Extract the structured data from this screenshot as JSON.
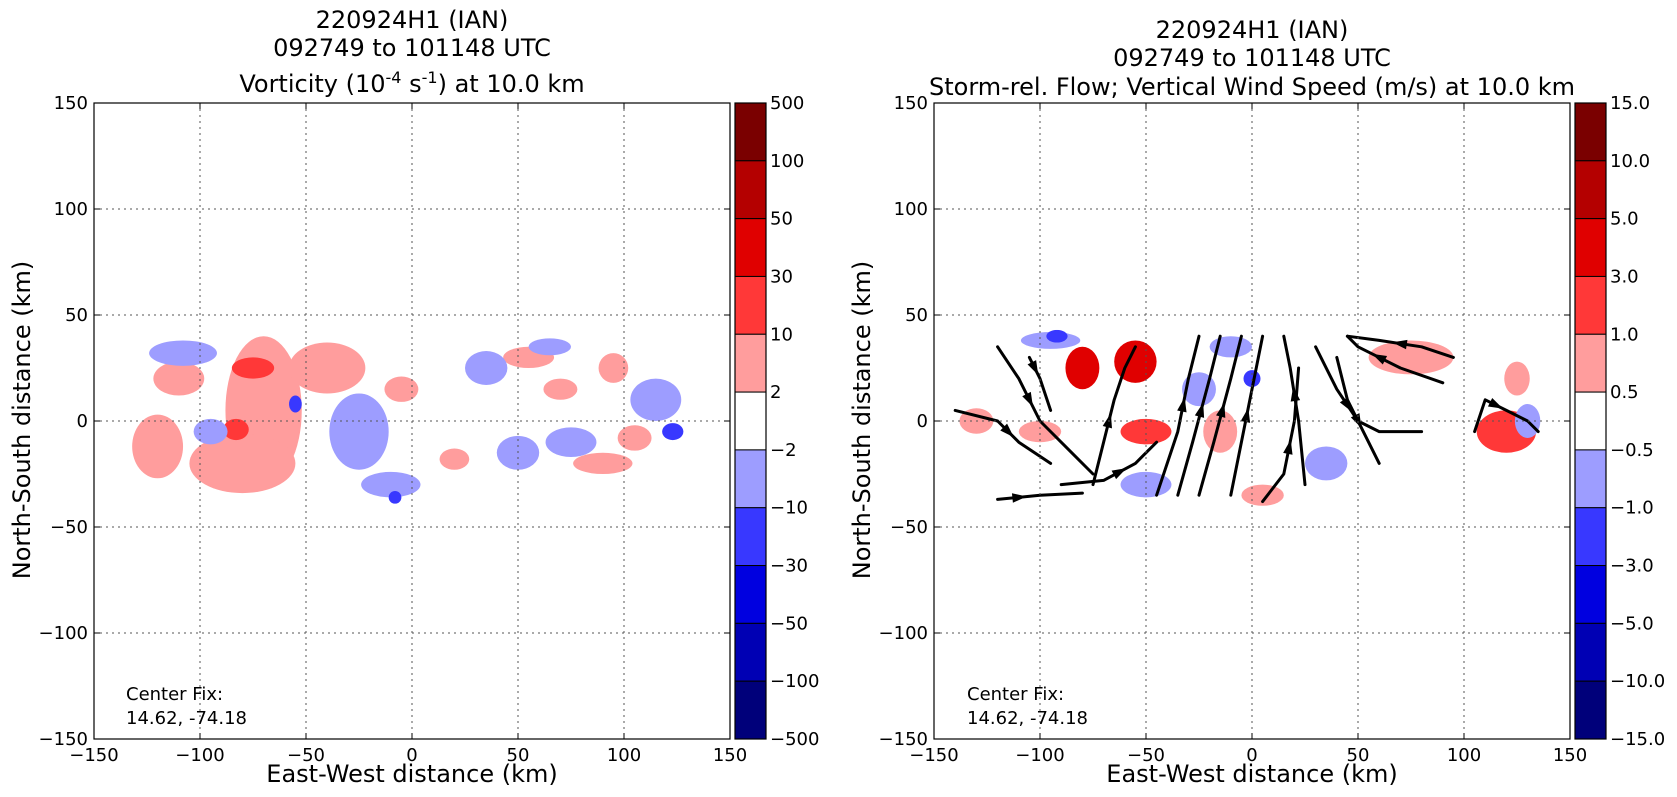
{
  "chart_data": [
    {
      "type": "heatmap",
      "title_lines": [
        "220924H1 (IAN)",
        "092749 to 101148 UTC"
      ],
      "subtitle_prefix": "Vorticity (10",
      "subtitle_sup1": "-4",
      "subtitle_mid": " s",
      "subtitle_sup2": "-1",
      "subtitle_suffix": ") at 10.0 km",
      "xlabel": "East-West distance (km)",
      "ylabel": "North-South distance (km)",
      "xlim": [
        -150,
        150
      ],
      "ylim": [
        -150,
        150
      ],
      "xticks": [
        -150,
        -100,
        -50,
        0,
        50,
        100,
        150
      ],
      "yticks": [
        -150,
        -100,
        -50,
        0,
        50,
        100,
        150
      ],
      "xtick_labels": [
        "−150",
        "−100",
        "−50",
        "0",
        "50",
        "100",
        "150"
      ],
      "ytick_labels": [
        "−150",
        "−100",
        "−50",
        "0",
        "50",
        "100",
        "150"
      ],
      "grid": true,
      "annotation": [
        "Center Fix:",
        "14.62, -74.18"
      ],
      "colorbar": {
        "labels": [
          "500",
          "100",
          "50",
          "30",
          "10",
          "2",
          "−2",
          "−10",
          "−30",
          "−50",
          "−100",
          "−500"
        ],
        "colors": [
          "#7a0000",
          "#b40000",
          "#e00000",
          "#ff3838",
          "#ff9d9d",
          "#ffffff",
          "#9d9dff",
          "#3838ff",
          "#0000e0",
          "#0000b4",
          "#00007a"
        ]
      },
      "data_extent": {
        "x": [
          -140,
          137
        ],
        "y": [
          -42,
          41
        ]
      },
      "features": [
        {
          "level": "pos-weak",
          "x": -70,
          "y": 5,
          "rx": 18,
          "ry": 35
        },
        {
          "level": "pos-weak",
          "x": -110,
          "y": 20,
          "rx": 12,
          "ry": 8
        },
        {
          "level": "pos-weak",
          "x": -120,
          "y": -12,
          "rx": 12,
          "ry": 15
        },
        {
          "level": "pos-weak",
          "x": -80,
          "y": -20,
          "rx": 25,
          "ry": 14
        },
        {
          "level": "pos-weak",
          "x": -40,
          "y": 25,
          "rx": 18,
          "ry": 12
        },
        {
          "level": "pos-mod",
          "x": -75,
          "y": 25,
          "rx": 10,
          "ry": 5
        },
        {
          "level": "pos-mod",
          "x": -83,
          "y": -4,
          "rx": 6,
          "ry": 5
        },
        {
          "level": "pos-weak",
          "x": -5,
          "y": 15,
          "rx": 8,
          "ry": 6
        },
        {
          "level": "pos-weak",
          "x": 55,
          "y": 30,
          "rx": 12,
          "ry": 5
        },
        {
          "level": "pos-weak",
          "x": 70,
          "y": 15,
          "rx": 8,
          "ry": 5
        },
        {
          "level": "pos-weak",
          "x": 20,
          "y": -18,
          "rx": 7,
          "ry": 5
        },
        {
          "level": "pos-weak",
          "x": 90,
          "y": -20,
          "rx": 14,
          "ry": 5
        },
        {
          "level": "pos-weak",
          "x": 105,
          "y": -8,
          "rx": 8,
          "ry": 6
        },
        {
          "level": "pos-weak",
          "x": 95,
          "y": 25,
          "rx": 7,
          "ry": 7
        },
        {
          "level": "neg-weak",
          "x": -25,
          "y": -5,
          "rx": 14,
          "ry": 18
        },
        {
          "level": "neg-weak",
          "x": -108,
          "y": 32,
          "rx": 16,
          "ry": 6
        },
        {
          "level": "neg-weak",
          "x": -95,
          "y": -5,
          "rx": 8,
          "ry": 6
        },
        {
          "level": "neg-weak",
          "x": 35,
          "y": 25,
          "rx": 10,
          "ry": 8
        },
        {
          "level": "neg-weak",
          "x": 50,
          "y": -15,
          "rx": 10,
          "ry": 8
        },
        {
          "level": "neg-weak",
          "x": 75,
          "y": -10,
          "rx": 12,
          "ry": 7
        },
        {
          "level": "neg-weak",
          "x": 115,
          "y": 10,
          "rx": 12,
          "ry": 10
        },
        {
          "level": "neg-weak",
          "x": 65,
          "y": 35,
          "rx": 10,
          "ry": 4
        },
        {
          "level": "neg-weak",
          "x": -10,
          "y": -30,
          "rx": 14,
          "ry": 6
        },
        {
          "level": "neg-mod",
          "x": 123,
          "y": -5,
          "rx": 5,
          "ry": 4
        },
        {
          "level": "neg-mod",
          "x": -55,
          "y": 8,
          "rx": 3,
          "ry": 4
        },
        {
          "level": "neg-mod",
          "x": -8,
          "y": -36,
          "rx": 3,
          "ry": 3
        }
      ]
    },
    {
      "type": "heatmap",
      "title_lines": [
        "220924H1 (IAN)",
        "092749 to 101148 UTC",
        "Storm-rel. Flow; Vertical Wind Speed (m/s) at 10.0 km"
      ],
      "xlabel": "East-West distance (km)",
      "ylabel": "North-South distance (km)",
      "xlim": [
        -150,
        150
      ],
      "ylim": [
        -150,
        150
      ],
      "xticks": [
        -150,
        -100,
        -50,
        0,
        50,
        100,
        150
      ],
      "yticks": [
        -150,
        -100,
        -50,
        0,
        50,
        100,
        150
      ],
      "xtick_labels": [
        "−150",
        "−100",
        "−50",
        "0",
        "50",
        "100",
        "150"
      ],
      "ytick_labels": [
        "−150",
        "−100",
        "−50",
        "0",
        "50",
        "100",
        "150"
      ],
      "grid": true,
      "annotation": [
        "Center Fix:",
        "14.62, -74.18"
      ],
      "colorbar": {
        "labels": [
          "15.0",
          "10.0",
          "5.0",
          "3.0",
          "1.0",
          "0.5",
          "−0.5",
          "−1.0",
          "−3.0",
          "−5.0",
          "−10.0",
          "−15.0"
        ],
        "colors": [
          "#7a0000",
          "#b40000",
          "#e00000",
          "#ff3838",
          "#ff9d9d",
          "#ffffff",
          "#9d9dff",
          "#3838ff",
          "#0000e0",
          "#0000b4",
          "#00007a"
        ]
      },
      "data_extent": {
        "x": [
          -140,
          137
        ],
        "y": [
          -44,
          43
        ]
      },
      "features": [
        {
          "level": "pos-strong",
          "x": -55,
          "y": 28,
          "rx": 10,
          "ry": 10
        },
        {
          "level": "pos-strong",
          "x": -80,
          "y": 25,
          "rx": 8,
          "ry": 10
        },
        {
          "level": "pos-mod",
          "x": 120,
          "y": -5,
          "rx": 14,
          "ry": 10
        },
        {
          "level": "pos-weak",
          "x": 125,
          "y": 20,
          "rx": 6,
          "ry": 8
        },
        {
          "level": "pos-weak",
          "x": 75,
          "y": 30,
          "rx": 20,
          "ry": 8
        },
        {
          "level": "pos-mod",
          "x": -50,
          "y": -5,
          "rx": 12,
          "ry": 6
        },
        {
          "level": "pos-weak",
          "x": -100,
          "y": -5,
          "rx": 10,
          "ry": 5
        },
        {
          "level": "pos-weak",
          "x": -130,
          "y": 0,
          "rx": 8,
          "ry": 6
        },
        {
          "level": "pos-weak",
          "x": -15,
          "y": -5,
          "rx": 8,
          "ry": 10
        },
        {
          "level": "pos-weak",
          "x": 5,
          "y": -35,
          "rx": 10,
          "ry": 5
        },
        {
          "level": "neg-weak",
          "x": -95,
          "y": 38,
          "rx": 14,
          "ry": 4
        },
        {
          "level": "neg-weak",
          "x": -25,
          "y": 15,
          "rx": 8,
          "ry": 8
        },
        {
          "level": "neg-weak",
          "x": 35,
          "y": -20,
          "rx": 10,
          "ry": 8
        },
        {
          "level": "neg-weak",
          "x": 130,
          "y": 0,
          "rx": 6,
          "ry": 8
        },
        {
          "level": "neg-weak",
          "x": -50,
          "y": -30,
          "rx": 12,
          "ry": 6
        },
        {
          "level": "neg-weak",
          "x": -10,
          "y": 35,
          "rx": 10,
          "ry": 5
        },
        {
          "level": "neg-mod",
          "x": -92,
          "y": 40,
          "rx": 5,
          "ry": 3
        },
        {
          "level": "neg-mod",
          "x": 0,
          "y": 20,
          "rx": 4,
          "ry": 4
        }
      ],
      "streamlines": [
        [
          [
            -120,
            -37
          ],
          [
            -100,
            -35
          ],
          [
            -80,
            -34
          ]
        ],
        [
          [
            -90,
            -30
          ],
          [
            -70,
            -28
          ],
          [
            -55,
            -20
          ],
          [
            -45,
            -10
          ]
        ],
        [
          [
            -140,
            5
          ],
          [
            -120,
            0
          ],
          [
            -110,
            -10
          ],
          [
            -95,
            -20
          ]
        ],
        [
          [
            -120,
            35
          ],
          [
            -110,
            20
          ],
          [
            -100,
            0
          ],
          [
            -85,
            -15
          ],
          [
            -75,
            -25
          ]
        ],
        [
          [
            -105,
            30
          ],
          [
            -100,
            20
          ],
          [
            -95,
            5
          ]
        ],
        [
          [
            -75,
            -30
          ],
          [
            -70,
            -10
          ],
          [
            -65,
            10
          ],
          [
            -60,
            25
          ],
          [
            -55,
            35
          ]
        ],
        [
          [
            -45,
            -35
          ],
          [
            -35,
            -5
          ],
          [
            -30,
            20
          ],
          [
            -25,
            40
          ]
        ],
        [
          [
            -35,
            -35
          ],
          [
            -28,
            -10
          ],
          [
            -20,
            20
          ],
          [
            -15,
            40
          ]
        ],
        [
          [
            -25,
            -35
          ],
          [
            -18,
            -10
          ],
          [
            -10,
            20
          ],
          [
            -5,
            40
          ]
        ],
        [
          [
            -10,
            -35
          ],
          [
            -5,
            -10
          ],
          [
            0,
            15
          ],
          [
            5,
            40
          ]
        ],
        [
          [
            5,
            -38
          ],
          [
            15,
            -25
          ],
          [
            20,
            0
          ],
          [
            22,
            25
          ]
        ],
        [
          [
            25,
            -30
          ],
          [
            22,
            0
          ],
          [
            18,
            25
          ],
          [
            15,
            40
          ]
        ],
        [
          [
            30,
            35
          ],
          [
            40,
            15
          ],
          [
            50,
            0
          ],
          [
            60,
            -5
          ],
          [
            80,
            -5
          ]
        ],
        [
          [
            40,
            30
          ],
          [
            45,
            10
          ],
          [
            55,
            -10
          ],
          [
            60,
            -20
          ]
        ],
        [
          [
            90,
            18
          ],
          [
            70,
            25
          ],
          [
            50,
            35
          ],
          [
            45,
            40
          ]
        ],
        [
          [
            95,
            30
          ],
          [
            80,
            35
          ],
          [
            60,
            38
          ],
          [
            45,
            40
          ]
        ],
        [
          [
            105,
            -5
          ],
          [
            110,
            10
          ],
          [
            120,
            5
          ],
          [
            130,
            0
          ],
          [
            135,
            -5
          ]
        ]
      ]
    }
  ]
}
